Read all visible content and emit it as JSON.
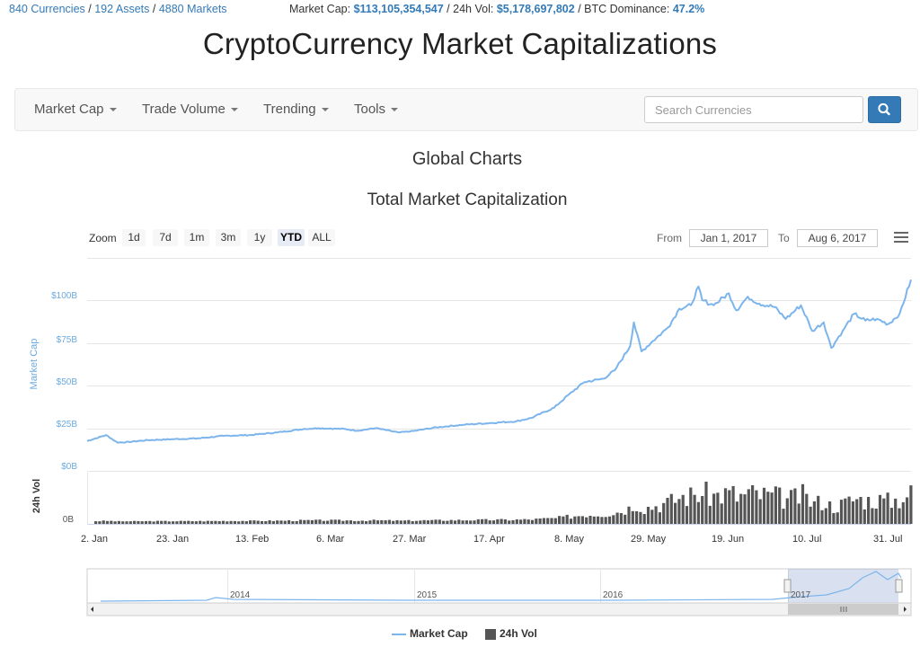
{
  "topbar": {
    "currencies": "840 Currencies",
    "assets": "192 Assets",
    "markets": "4880 Markets",
    "market_cap_label": "Market Cap:",
    "market_cap_value": "$113,105,354,547",
    "vol_label": "24h Vol:",
    "vol_value": "$5,178,697,802",
    "dominance_label": "BTC Dominance:",
    "dominance_value": "47.2%",
    "sep": "/"
  },
  "page_title": "CryptoCurrency Market Capitalizations",
  "nav": {
    "items": [
      "Market Cap",
      "Trade Volume",
      "Trending",
      "Tools"
    ],
    "search_placeholder": "Search Currencies"
  },
  "section_title": "Global Charts",
  "controls": {
    "zoom_label": "Zoom",
    "zoom_buttons": [
      "1d",
      "7d",
      "1m",
      "3m",
      "1y",
      "YTD",
      "ALL"
    ],
    "active_zoom": "YTD",
    "from_label": "From",
    "from_value": "Jan 1, 2017",
    "to_label": "To",
    "to_value": "Aug 6, 2017"
  },
  "chart_data": {
    "type": "line",
    "title": "Total Market Capitalization",
    "ylabel": "Market Cap",
    "y_ticks": [
      "$0B",
      "$25B",
      "$50B",
      "$75B",
      "$100B"
    ],
    "ylim": [
      0,
      125
    ],
    "xlim": [
      "2017-01-01",
      "2017-08-06"
    ],
    "x_ticks": [
      "2. Jan",
      "23. Jan",
      "13. Feb",
      "6. Mar",
      "27. Mar",
      "17. Apr",
      "8. May",
      "29. May",
      "19. Jun",
      "10. Jul",
      "31. Jul"
    ],
    "series": [
      {
        "name": "Market Cap",
        "color": "#7cb5ec",
        "x": [
          "2017-01-01",
          "2017-01-06",
          "2017-01-09",
          "2017-01-12",
          "2017-01-17",
          "2017-01-23",
          "2017-01-30",
          "2017-02-06",
          "2017-02-13",
          "2017-02-20",
          "2017-02-27",
          "2017-03-03",
          "2017-03-10",
          "2017-03-13",
          "2017-03-18",
          "2017-03-24",
          "2017-03-27",
          "2017-04-03",
          "2017-04-10",
          "2017-04-17",
          "2017-04-24",
          "2017-04-28",
          "2017-05-04",
          "2017-05-08",
          "2017-05-12",
          "2017-05-17",
          "2017-05-20",
          "2017-05-24",
          "2017-05-25",
          "2017-05-27",
          "2017-05-30",
          "2017-06-03",
          "2017-06-06",
          "2017-06-09",
          "2017-06-11",
          "2017-06-12",
          "2017-06-15",
          "2017-06-19",
          "2017-06-21",
          "2017-06-24",
          "2017-06-27",
          "2017-07-01",
          "2017-07-04",
          "2017-07-08",
          "2017-07-11",
          "2017-07-14",
          "2017-07-16",
          "2017-07-19",
          "2017-07-22",
          "2017-07-25",
          "2017-07-28",
          "2017-07-31",
          "2017-08-03",
          "2017-08-06"
        ],
        "values": [
          17.5,
          21,
          16.5,
          17,
          18,
          18.5,
          19,
          20.5,
          21,
          22.5,
          24.5,
          25,
          24.5,
          23.5,
          25,
          22.5,
          23,
          25.5,
          27,
          28,
          29,
          31,
          37,
          45,
          52,
          54,
          59,
          73,
          87,
          70,
          76,
          84,
          95,
          97,
          108,
          100,
          97,
          104,
          94,
          102,
          98,
          96,
          89,
          97,
          82,
          87,
          72,
          82,
          92,
          88,
          89,
          86,
          92,
          112
        ]
      }
    ],
    "volume": {
      "name": "24h Vol",
      "color": "#555555",
      "y_ticks": [
        "0B"
      ],
      "ylabel": "24h Vol"
    },
    "navigator_ticks": [
      "2014",
      "2015",
      "2016",
      "2017"
    ],
    "legend": [
      "Market Cap",
      "24h Vol"
    ],
    "legend_position": "bottom-center",
    "grid": true
  }
}
